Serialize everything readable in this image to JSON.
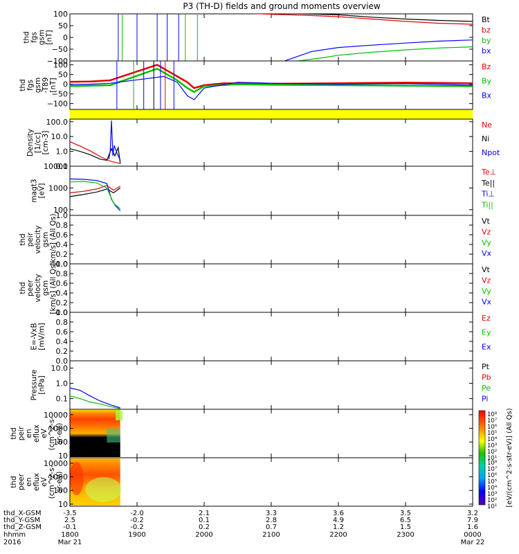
{
  "title": "P3 (TH-D) fields and ground moments overview",
  "time_axis": {
    "tick_labels": [
      "1800",
      "1900",
      "2000",
      "2100",
      "2200",
      "2300",
      "0000"
    ],
    "row_labels": [
      "thd_X-GSM",
      "thd_Y-GSM",
      "thd_Z-GSM",
      "hhmm",
      "2016"
    ],
    "date_start": "Mar 21",
    "date_end": "Mar 22",
    "position_values": [
      [
        "-3.5",
        "-2.0",
        "2.1",
        "3.3",
        "3.6",
        "3.5",
        "3.2"
      ],
      [
        "2.5",
        "-0.2",
        "0.1",
        "2.8",
        "4.9",
        "6.5",
        "7.9"
      ],
      [
        "-0.1",
        "-0.2",
        "0.2",
        "0.7",
        "1.2",
        "1.5",
        "1.6"
      ]
    ]
  },
  "colorbar": {
    "label": "[eV/(cm^2-s-str-eV)] (All Qs)",
    "upper_ticks": [
      "10⁸",
      "10⁷",
      "10⁶",
      "10⁵",
      "10⁴",
      "10³",
      "10²",
      "10¹"
    ],
    "lower_ticks": [
      "10⁸",
      "10⁷",
      "10⁶",
      "10⁵",
      "10⁴",
      "10³",
      "10²",
      "10¹"
    ]
  },
  "colors": {
    "black": "#000000",
    "red": "#e00000",
    "green": "#00c000",
    "blue": "#0000ff",
    "yellow": "#ffff00"
  },
  "chart_data": [
    {
      "type": "line",
      "ylabel": [
        "thd",
        "fgs",
        "gsm",
        "[nT]"
      ],
      "ylim": [
        -100,
        100
      ],
      "yticks": [
        100,
        50,
        0,
        -50,
        -100
      ],
      "yticklabels": [
        "100",
        "50",
        "0",
        "−50",
        "−100"
      ],
      "legend": [
        {
          "name": "Bt",
          "color": "#000000"
        },
        {
          "name": "bz",
          "color": "#e00000"
        },
        {
          "name": "by",
          "color": "#00c000"
        },
        {
          "name": "bx",
          "color": "#0000ff"
        }
      ],
      "series": [
        {
          "name": "Bt",
          "color": "#000000",
          "x": [
            20.5,
            21.0,
            21.5,
            22.0,
            22.5,
            23.0,
            23.5,
            24.0
          ],
          "y": [
            104,
            102,
            100,
            96,
            86,
            78,
            72,
            68
          ]
        },
        {
          "name": "bz",
          "color": "#e00000",
          "x": [
            20.7,
            21.0,
            21.5,
            22.0,
            22.5,
            23.0,
            23.5,
            24.0
          ],
          "y": [
            102,
            98,
            94,
            88,
            78,
            68,
            60,
            56
          ]
        },
        {
          "name": "by",
          "color": "#00c000",
          "x": [
            21.4,
            21.8,
            22.0,
            22.5,
            23.0,
            23.5,
            24.0
          ],
          "y": [
            -100,
            -85,
            -76,
            -63,
            -53,
            -45,
            -40
          ]
        },
        {
          "name": "bx",
          "color": "#0000ff",
          "x": [
            21.2,
            21.4,
            21.6,
            22.0,
            22.5,
            23.0,
            23.5,
            24.0
          ],
          "y": [
            -100,
            -80,
            -60,
            -43,
            -33,
            -24,
            -16,
            -11
          ]
        }
      ]
    },
    {
      "type": "line",
      "ylabel": [
        "thd",
        "fgs",
        "gsm",
        "-T89",
        "[nT]"
      ],
      "ylim": [
        -130,
        120
      ],
      "yticks": [
        100,
        50,
        0,
        -50,
        -100
      ],
      "yticklabels": [
        "100",
        "50",
        "0",
        "−50",
        "−100"
      ],
      "legend": [
        {
          "name": "Bz",
          "color": "#e00000"
        },
        {
          "name": "By",
          "color": "#00c000"
        },
        {
          "name": "Bx",
          "color": "#0000ff"
        }
      ],
      "series": [
        {
          "name": "Bz",
          "color": "#e00000",
          "x": [
            17.9,
            18.3,
            18.6,
            19.3,
            19.5,
            19.75,
            19.85,
            20.0,
            20.3,
            21.0,
            22.0,
            23.0,
            24.0
          ],
          "y": [
            12,
            14,
            20,
            100,
            60,
            10,
            -20,
            -5,
            5,
            2,
            5,
            8,
            5
          ]
        },
        {
          "name": "By",
          "color": "#00c000",
          "x": [
            17.9,
            18.3,
            18.6,
            19.3,
            19.6,
            19.75,
            19.85,
            20.0,
            20.5,
            21.0,
            22.0,
            23.0,
            24.0
          ],
          "y": [
            -10,
            -8,
            -5,
            80,
            20,
            -20,
            -40,
            -10,
            0,
            -3,
            -5,
            -8,
            -10
          ]
        },
        {
          "name": "Bx",
          "color": "#0000ff",
          "x": [
            17.9,
            18.3,
            18.6,
            19.4,
            19.6,
            19.75,
            19.85,
            20.0,
            20.5,
            21.0,
            22.0,
            23.0,
            24.0
          ],
          "y": [
            -2,
            0,
            5,
            40,
            10,
            -60,
            -80,
            -20,
            10,
            5,
            0,
            3,
            -5
          ]
        }
      ]
    },
    {
      "type": "line",
      "ylabel": [
        "Density",
        "[1/cc]",
        "[cm-3]"
      ],
      "ylim": [
        0.1,
        150
      ],
      "log": true,
      "yticks": [
        100,
        10,
        1,
        0.1
      ],
      "yticklabels": [
        "100.0",
        "10.0",
        "1.0",
        "0.1"
      ],
      "legend": [
        {
          "name": "Ne",
          "color": "#e00000"
        },
        {
          "name": "Ni",
          "color": "#000000"
        },
        {
          "name": "Npot",
          "color": "#0000ff"
        }
      ],
      "series": [
        {
          "name": "Ne",
          "color": "#e00000",
          "x": [
            18.0,
            18.15,
            18.3,
            18.45,
            18.6,
            18.75
          ],
          "y": [
            4.5,
            2.3,
            1.1,
            0.45,
            0.22,
            0.15
          ]
        },
        {
          "name": "Ni",
          "color": "#000000",
          "x": [
            18.0,
            18.15,
            18.3,
            18.45,
            18.55,
            18.62,
            18.67,
            18.72,
            18.75
          ],
          "y": [
            1.5,
            1.0,
            0.6,
            0.3,
            0.25,
            1.5,
            0.5,
            1.8,
            0.15
          ]
        },
        {
          "name": "Npot",
          "color": "#0000ff",
          "x": [
            18.58,
            18.6,
            18.62,
            18.64,
            18.66,
            18.7,
            18.75
          ],
          "y": [
            0.3,
            1.0,
            120,
            0.5,
            2.5,
            0.8,
            0.25
          ]
        }
      ]
    },
    {
      "type": "line",
      "ylabel": [
        "magt3",
        "[eV]"
      ],
      "ylim": [
        55,
        10000
      ],
      "log": true,
      "yticks": [
        10000,
        1000,
        100
      ],
      "yticklabels": [
        "10000",
        "1000",
        "100"
      ],
      "legend": [
        {
          "name": "Te⊥",
          "color": "#e00000"
        },
        {
          "name": "Te||",
          "color": "#000000"
        },
        {
          "name": "Ti⊥",
          "color": "#0000ff"
        },
        {
          "name": "Ti||",
          "color": "#00c000"
        }
      ],
      "series": [
        {
          "name": "Te⊥",
          "color": "#e00000",
          "x": [
            18.0,
            18.2,
            18.4,
            18.55,
            18.65,
            18.75
          ],
          "y": [
            600,
            700,
            900,
            1300,
            800,
            1200
          ]
        },
        {
          "name": "Te||",
          "color": "#000000",
          "x": [
            18.0,
            18.2,
            18.4,
            18.55,
            18.65,
            18.75
          ],
          "y": [
            400,
            500,
            650,
            900,
            600,
            1000
          ]
        },
        {
          "name": "Ti⊥",
          "color": "#0000ff",
          "x": [
            18.0,
            18.2,
            18.4,
            18.55,
            18.62,
            18.68,
            18.75
          ],
          "y": [
            2600,
            2500,
            2200,
            1600,
            300,
            150,
            90
          ]
        },
        {
          "name": "Ti||",
          "color": "#00c000",
          "x": [
            18.0,
            18.2,
            18.4,
            18.55,
            18.65,
            18.75
          ],
          "y": [
            1900,
            2000,
            1700,
            1000,
            200,
            110
          ]
        }
      ]
    },
    {
      "type": "line",
      "ylabel": [
        "thd",
        "peir",
        "velocity",
        "gsm",
        "[km/s] (All Qs)"
      ],
      "ylim": [
        0,
        1
      ],
      "yticks": [
        0,
        0.2,
        0.4,
        0.6,
        0.8,
        1.0
      ],
      "yticklabels": [
        "0.0",
        "0.2",
        "0.4",
        "0.6",
        "0.8",
        "1.0"
      ],
      "legend": [
        {
          "name": "Vt",
          "color": "#000000"
        },
        {
          "name": "Vz",
          "color": "#e00000"
        },
        {
          "name": "Vy",
          "color": "#00c000"
        },
        {
          "name": "Vx",
          "color": "#0000ff"
        }
      ],
      "series": []
    },
    {
      "type": "line",
      "ylabel": [
        "thd",
        "peer",
        "velocity",
        "gsm",
        "[km/s] (All Qs)"
      ],
      "ylim": [
        0,
        1
      ],
      "yticks": [
        0,
        0.2,
        0.4,
        0.6,
        0.8,
        1.0
      ],
      "yticklabels": [
        "0.0",
        "0.2",
        "0.4",
        "0.6",
        "0.8",
        "1.0"
      ],
      "legend": [
        {
          "name": "Vt",
          "color": "#000000"
        },
        {
          "name": "Vz",
          "color": "#e00000"
        },
        {
          "name": "Vy",
          "color": "#00c000"
        },
        {
          "name": "Vx",
          "color": "#0000ff"
        }
      ],
      "series": []
    },
    {
      "type": "line",
      "ylabel": [
        "E=-VxB",
        "[mV/m]"
      ],
      "ylim": [
        0,
        1
      ],
      "yticks": [
        0,
        0.2,
        0.4,
        0.6,
        0.8,
        1.0
      ],
      "yticklabels": [
        "0.0",
        "0.2",
        "0.4",
        "0.6",
        "0.8",
        "1.0"
      ],
      "legend": [
        {
          "name": "Ez",
          "color": "#e00000"
        },
        {
          "name": "Ey",
          "color": "#00c000"
        },
        {
          "name": "Ex",
          "color": "#0000ff"
        }
      ],
      "series": []
    },
    {
      "type": "line",
      "ylabel": [
        "Pressure",
        "[nPa]"
      ],
      "ylim": [
        0.02,
        30
      ],
      "log": true,
      "yticks": [
        10,
        1,
        0.1
      ],
      "yticklabels": [
        "10.0",
        "1.0",
        "0.1"
      ],
      "legend": [
        {
          "name": "Pt",
          "color": "#000000"
        },
        {
          "name": "Pb",
          "color": "#e00000"
        },
        {
          "name": "Pe",
          "color": "#00c000"
        },
        {
          "name": "Pi",
          "color": "#0000ff"
        }
      ],
      "series": [
        {
          "name": "Pi",
          "color": "#0000ff",
          "x": [
            18.0,
            18.15,
            18.3,
            18.45,
            18.6,
            18.75
          ],
          "y": [
            0.5,
            0.35,
            0.15,
            0.07,
            0.04,
            0.025
          ]
        },
        {
          "name": "Pe",
          "color": "#00c000",
          "x": [
            18.0,
            18.15,
            18.3,
            18.45,
            18.6,
            18.75
          ],
          "y": [
            0.15,
            0.1,
            0.06,
            0.045,
            0.03,
            0.022
          ]
        }
      ]
    },
    {
      "type": "heatmap",
      "ylabel": [
        "thd",
        "peir",
        "en",
        "eflux",
        "eV",
        "(cm^2-s-",
        "sr-eV)"
      ],
      "ylim": [
        7,
        25000
      ],
      "log": true,
      "yticks": [
        10000,
        1000,
        100,
        10
      ],
      "yticklabels": [
        "10000",
        "1000",
        "100",
        "10"
      ],
      "x_range": [
        18.0,
        18.75
      ]
    },
    {
      "type": "heatmap",
      "ylabel": [
        "thd",
        "peer",
        "en",
        "eflux",
        "eV",
        "(cm^2-s-",
        "sr-eV)"
      ],
      "ylim": [
        7,
        25000
      ],
      "log": true,
      "yticks": [
        10000,
        1000,
        100,
        10
      ],
      "yticklabels": [
        "10000",
        "1000",
        "100",
        "10"
      ],
      "x_range": [
        18.0,
        18.75
      ]
    }
  ]
}
